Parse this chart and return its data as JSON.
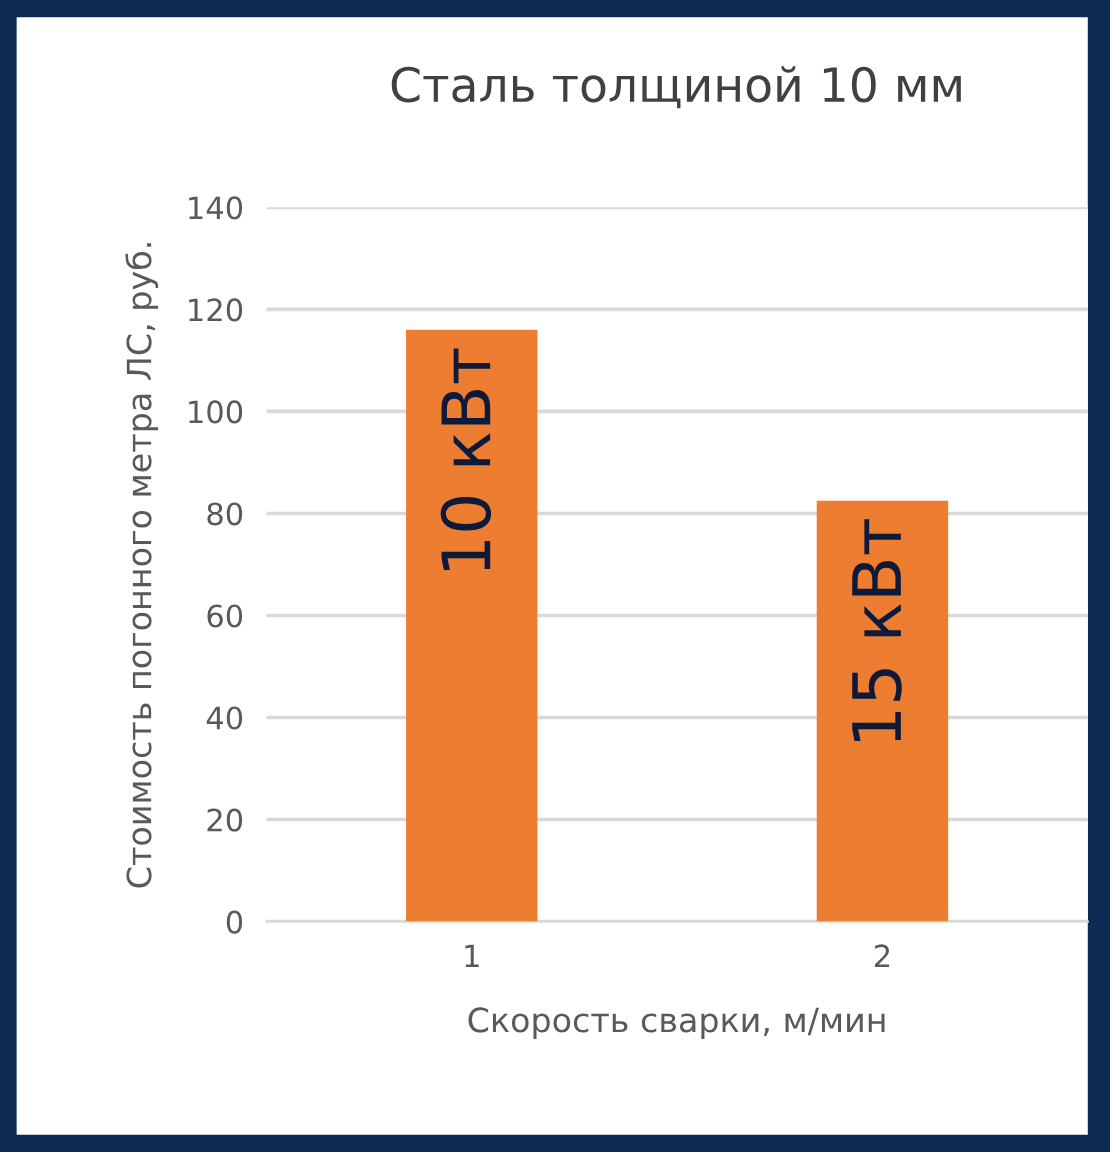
{
  "chart_data": {
    "type": "bar",
    "title": "Сталь толщиной 10 мм",
    "xlabel": "Скорость сварки, м/мин",
    "ylabel": "Стоимость погонного метра ЛС, руб.",
    "categories": [
      "1",
      "2"
    ],
    "values": [
      116,
      82.5
    ],
    "color": "#ed7d31",
    "ylim": [
      0,
      140
    ],
    "yticks": [
      0,
      20,
      40,
      60,
      80,
      100,
      120,
      140
    ],
    "grid": "y",
    "legend": false,
    "annotations": [
      "10 кВт",
      "15 кВт"
    ]
  }
}
